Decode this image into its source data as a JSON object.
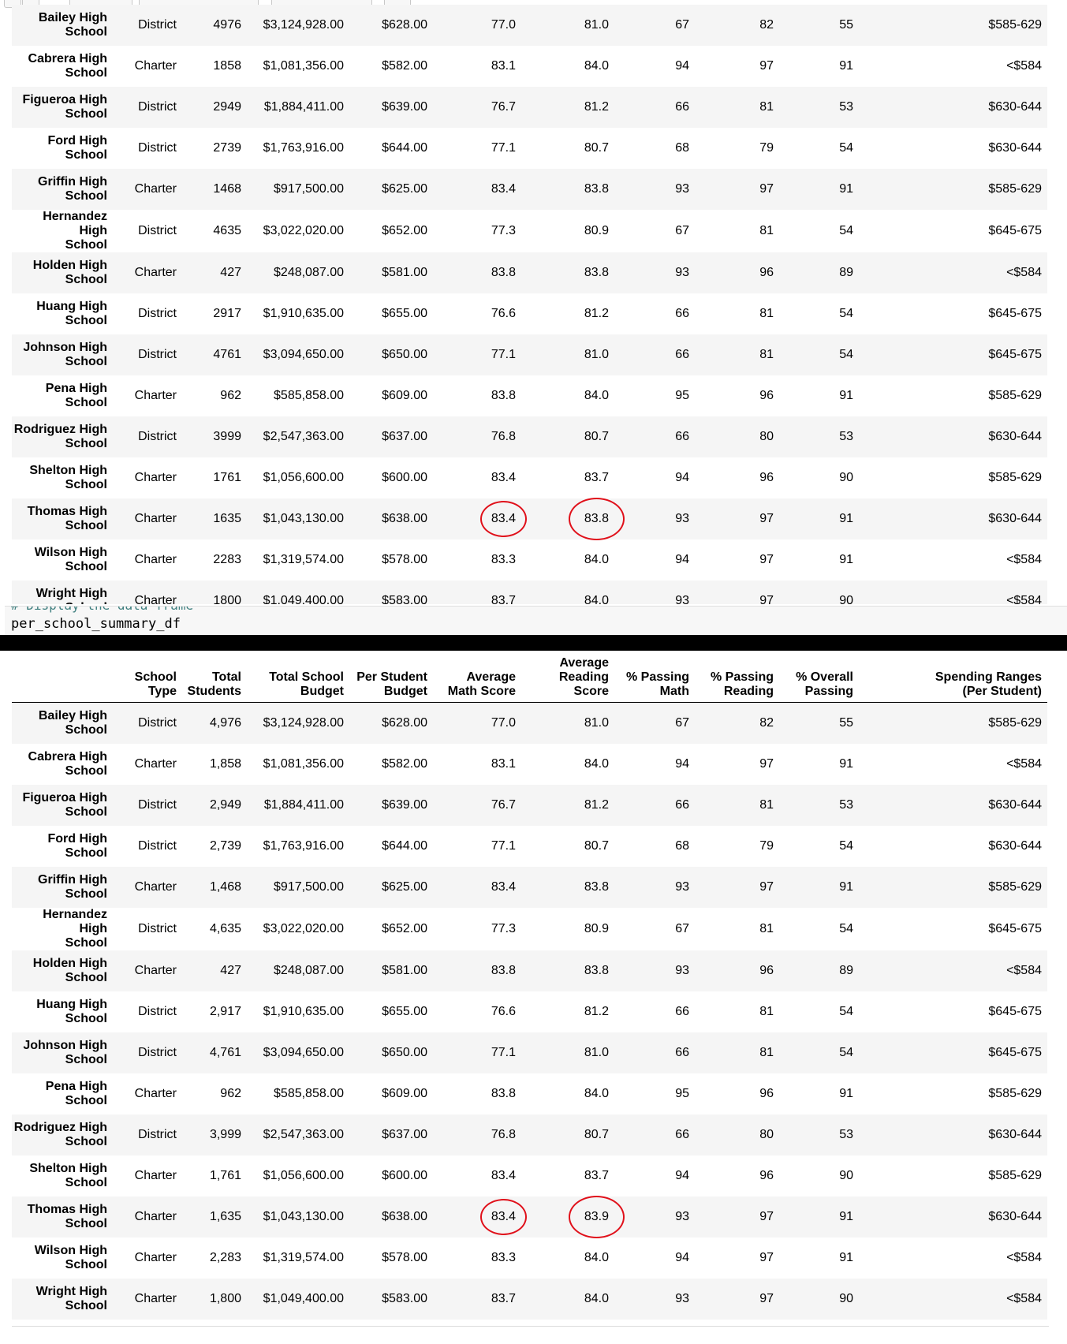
{
  "code_cell": {
    "clipped_comment": "# Display the data frame",
    "code": "per_school_summary_df"
  },
  "columns": [
    "School\nType",
    "Total\nStudents",
    "Total School\nBudget",
    "Per Student\nBudget",
    "Average\nMath Score",
    "Average\nReading Score",
    "% Passing\nMath",
    "% Passing\nReading",
    "% Overall\nPassing",
    "Spending Ranges\n(Per Student)"
  ],
  "table_top": {
    "rows": [
      {
        "school": "Bailey High School",
        "cells": [
          "District",
          "4976",
          "$3,124,928.00",
          "$628.00",
          "77.0",
          "81.0",
          "67",
          "82",
          "55",
          "$585-629"
        ]
      },
      {
        "school": "Cabrera High School",
        "cells": [
          "Charter",
          "1858",
          "$1,081,356.00",
          "$582.00",
          "83.1",
          "84.0",
          "94",
          "97",
          "91",
          "<$584"
        ]
      },
      {
        "school": "Figueroa High School",
        "cells": [
          "District",
          "2949",
          "$1,884,411.00",
          "$639.00",
          "76.7",
          "81.2",
          "66",
          "81",
          "53",
          "$630-644"
        ]
      },
      {
        "school": "Ford High School",
        "cells": [
          "District",
          "2739",
          "$1,763,916.00",
          "$644.00",
          "77.1",
          "80.7",
          "68",
          "79",
          "54",
          "$630-644"
        ]
      },
      {
        "school": "Griffin High School",
        "cells": [
          "Charter",
          "1468",
          "$917,500.00",
          "$625.00",
          "83.4",
          "83.8",
          "93",
          "97",
          "91",
          "$585-629"
        ]
      },
      {
        "school": "Hernandez High School",
        "cells": [
          "District",
          "4635",
          "$3,022,020.00",
          "$652.00",
          "77.3",
          "80.9",
          "67",
          "81",
          "54",
          "$645-675"
        ]
      },
      {
        "school": "Holden High School",
        "cells": [
          "Charter",
          "427",
          "$248,087.00",
          "$581.00",
          "83.8",
          "83.8",
          "93",
          "96",
          "89",
          "<$584"
        ]
      },
      {
        "school": "Huang High School",
        "cells": [
          "District",
          "2917",
          "$1,910,635.00",
          "$655.00",
          "76.6",
          "81.2",
          "66",
          "81",
          "54",
          "$645-675"
        ]
      },
      {
        "school": "Johnson High School",
        "cells": [
          "District",
          "4761",
          "$3,094,650.00",
          "$650.00",
          "77.1",
          "81.0",
          "66",
          "81",
          "54",
          "$645-675"
        ]
      },
      {
        "school": "Pena High School",
        "cells": [
          "Charter",
          "962",
          "$585,858.00",
          "$609.00",
          "83.8",
          "84.0",
          "95",
          "96",
          "91",
          "$585-629"
        ]
      },
      {
        "school": "Rodriguez High School",
        "cells": [
          "District",
          "3999",
          "$2,547,363.00",
          "$637.00",
          "76.8",
          "80.7",
          "66",
          "80",
          "53",
          "$630-644"
        ]
      },
      {
        "school": "Shelton High School",
        "cells": [
          "Charter",
          "1761",
          "$1,056,600.00",
          "$600.00",
          "83.4",
          "83.7",
          "94",
          "96",
          "90",
          "$585-629"
        ]
      },
      {
        "school": "Thomas High School",
        "cells": [
          "Charter",
          "1635",
          "$1,043,130.00",
          "$638.00",
          "83.4",
          "83.8",
          "93",
          "97",
          "91",
          "$630-644"
        ],
        "circled": [
          4,
          5
        ]
      },
      {
        "school": "Wilson High School",
        "cells": [
          "Charter",
          "2283",
          "$1,319,574.00",
          "$578.00",
          "83.3",
          "84.0",
          "94",
          "97",
          "91",
          "<$584"
        ]
      },
      {
        "school": "Wright High School",
        "cells": [
          "Charter",
          "1800",
          "$1,049,400.00",
          "$583.00",
          "83.7",
          "84.0",
          "93",
          "97",
          "90",
          "<$584"
        ]
      }
    ]
  },
  "table_bottom": {
    "rows": [
      {
        "school": "Bailey High School",
        "cells": [
          "District",
          "4,976",
          "$3,124,928.00",
          "$628.00",
          "77.0",
          "81.0",
          "67",
          "82",
          "55",
          "$585-629"
        ]
      },
      {
        "school": "Cabrera High School",
        "cells": [
          "Charter",
          "1,858",
          "$1,081,356.00",
          "$582.00",
          "83.1",
          "84.0",
          "94",
          "97",
          "91",
          "<$584"
        ]
      },
      {
        "school": "Figueroa High School",
        "cells": [
          "District",
          "2,949",
          "$1,884,411.00",
          "$639.00",
          "76.7",
          "81.2",
          "66",
          "81",
          "53",
          "$630-644"
        ]
      },
      {
        "school": "Ford High School",
        "cells": [
          "District",
          "2,739",
          "$1,763,916.00",
          "$644.00",
          "77.1",
          "80.7",
          "68",
          "79",
          "54",
          "$630-644"
        ]
      },
      {
        "school": "Griffin High School",
        "cells": [
          "Charter",
          "1,468",
          "$917,500.00",
          "$625.00",
          "83.4",
          "83.8",
          "93",
          "97",
          "91",
          "$585-629"
        ]
      },
      {
        "school": "Hernandez High School",
        "cells": [
          "District",
          "4,635",
          "$3,022,020.00",
          "$652.00",
          "77.3",
          "80.9",
          "67",
          "81",
          "54",
          "$645-675"
        ]
      },
      {
        "school": "Holden High School",
        "cells": [
          "Charter",
          "427",
          "$248,087.00",
          "$581.00",
          "83.8",
          "83.8",
          "93",
          "96",
          "89",
          "<$584"
        ]
      },
      {
        "school": "Huang High School",
        "cells": [
          "District",
          "2,917",
          "$1,910,635.00",
          "$655.00",
          "76.6",
          "81.2",
          "66",
          "81",
          "54",
          "$645-675"
        ]
      },
      {
        "school": "Johnson High School",
        "cells": [
          "District",
          "4,761",
          "$3,094,650.00",
          "$650.00",
          "77.1",
          "81.0",
          "66",
          "81",
          "54",
          "$645-675"
        ]
      },
      {
        "school": "Pena High School",
        "cells": [
          "Charter",
          "962",
          "$585,858.00",
          "$609.00",
          "83.8",
          "84.0",
          "95",
          "96",
          "91",
          "$585-629"
        ]
      },
      {
        "school": "Rodriguez High School",
        "cells": [
          "District",
          "3,999",
          "$2,547,363.00",
          "$637.00",
          "76.8",
          "80.7",
          "66",
          "80",
          "53",
          "$630-644"
        ]
      },
      {
        "school": "Shelton High School",
        "cells": [
          "Charter",
          "1,761",
          "$1,056,600.00",
          "$600.00",
          "83.4",
          "83.7",
          "94",
          "96",
          "90",
          "$585-629"
        ]
      },
      {
        "school": "Thomas High School",
        "cells": [
          "Charter",
          "1,635",
          "$1,043,130.00",
          "$638.00",
          "83.4",
          "83.9",
          "93",
          "97",
          "91",
          "$630-644"
        ],
        "circled": [
          4,
          5
        ]
      },
      {
        "school": "Wilson High School",
        "cells": [
          "Charter",
          "2,283",
          "$1,319,574.00",
          "$578.00",
          "83.3",
          "84.0",
          "94",
          "97",
          "91",
          "<$584"
        ]
      },
      {
        "school": "Wright High School",
        "cells": [
          "Charter",
          "1,800",
          "$1,049,400.00",
          "$583.00",
          "83.7",
          "84.0",
          "93",
          "97",
          "90",
          "<$584"
        ]
      }
    ]
  }
}
